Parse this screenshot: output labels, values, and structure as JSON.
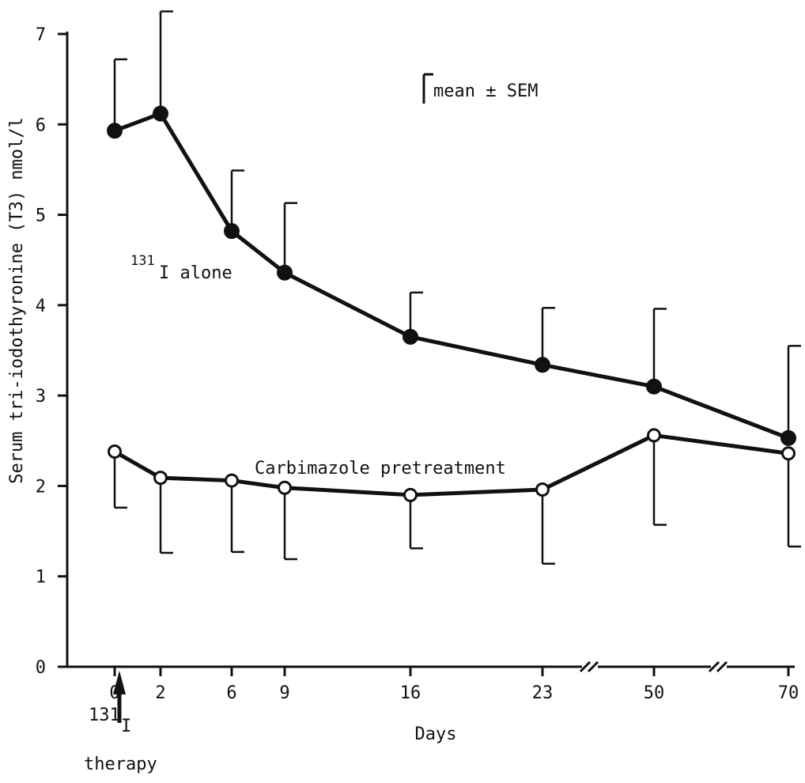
{
  "chart_data": {
    "type": "line",
    "title": "",
    "xlabel": "Days",
    "ylabel": "Serum tri-iodothyronine (T3) nmol/l",
    "ylim": [
      0,
      7
    ],
    "yticks": [
      0,
      1,
      2,
      3,
      4,
      5,
      6,
      7
    ],
    "x": [
      0,
      2,
      6,
      9,
      16,
      23,
      50,
      70
    ],
    "x_tick_labels": [
      "0",
      "2",
      "6",
      "9",
      "16",
      "23",
      "50",
      "70"
    ],
    "x_axis_breaks": [
      "23-50",
      "50-70"
    ],
    "grid": false,
    "legend": "none",
    "series": [
      {
        "name": "131I alone",
        "marker": "filled-circle",
        "values": [
          5.93,
          6.12,
          4.82,
          4.36,
          3.65,
          3.34,
          3.1,
          2.53
        ],
        "sem_upper": [
          6.72,
          7.25,
          5.49,
          5.13,
          4.14,
          3.97,
          3.96,
          3.55
        ]
      },
      {
        "name": "Carbimazole pretreatment",
        "marker": "open-circle",
        "values": [
          2.38,
          2.09,
          2.06,
          1.98,
          1.9,
          1.96,
          2.56,
          2.36
        ],
        "sem_lower": [
          1.76,
          1.26,
          1.27,
          1.19,
          1.31,
          1.14,
          1.57,
          1.33
        ]
      }
    ],
    "annotations": {
      "error_legend": "mean ± SEM",
      "series1_label_sup": "131",
      "series1_label_main": "I alone",
      "series2_label": "Carbimazole pretreatment",
      "therapy_sup": "131",
      "therapy_main": "I",
      "therapy_text": "therapy"
    }
  }
}
